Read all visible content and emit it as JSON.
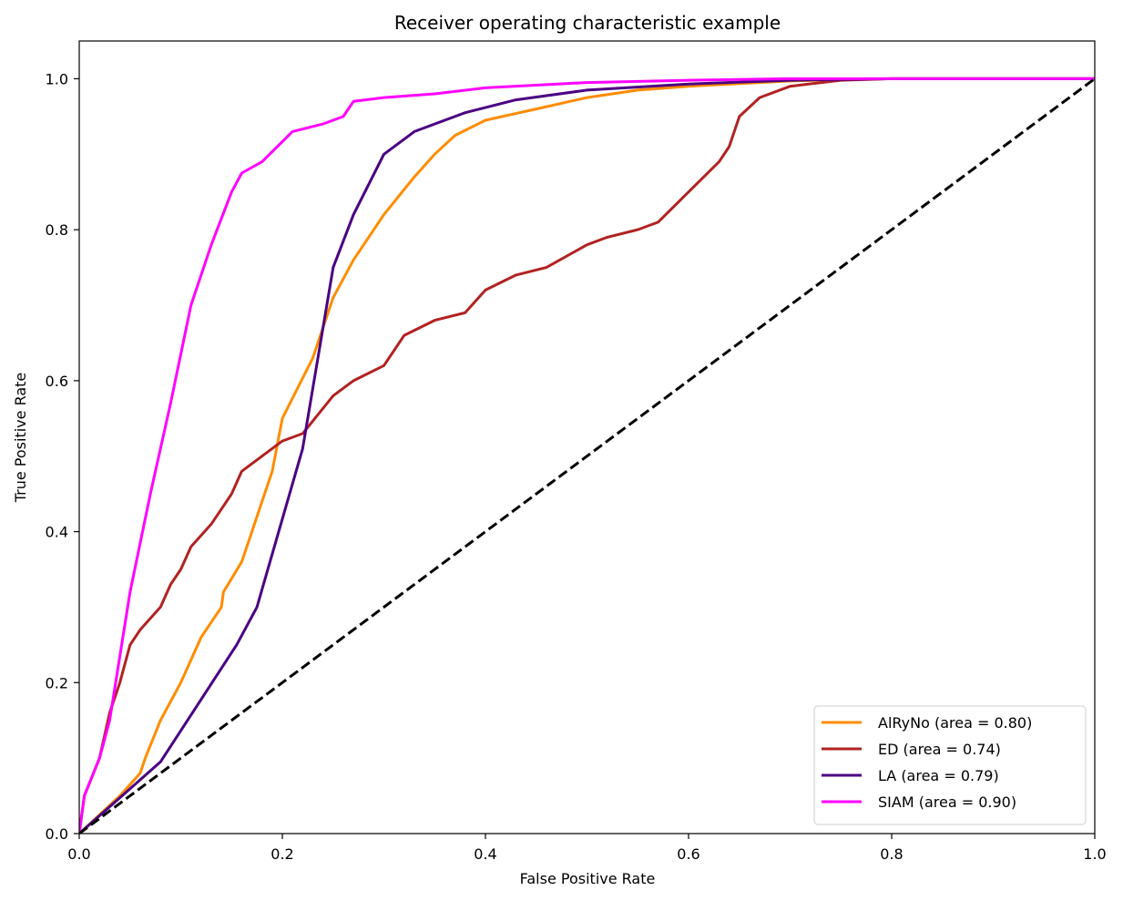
{
  "chart_data": {
    "type": "line",
    "title": "Receiver operating characteristic example",
    "xlabel": "False Positive Rate",
    "ylabel": "True Positive Rate",
    "xlim": [
      0.0,
      1.0
    ],
    "ylim": [
      0.0,
      1.05
    ],
    "xticks": [
      "0.0",
      "0.2",
      "0.4",
      "0.6",
      "0.8",
      "1.0"
    ],
    "yticks": [
      "0.0",
      "0.2",
      "0.4",
      "0.6",
      "0.8",
      "1.0"
    ],
    "grid": false,
    "legend_position": "lower right",
    "series": [
      {
        "name": "AlRyNo (area = 0.80)",
        "color": "#ff8c00",
        "points": [
          [
            0.0,
            0.0
          ],
          [
            0.02,
            0.025
          ],
          [
            0.04,
            0.05
          ],
          [
            0.06,
            0.08
          ],
          [
            0.065,
            0.1
          ],
          [
            0.08,
            0.15
          ],
          [
            0.1,
            0.2
          ],
          [
            0.12,
            0.26
          ],
          [
            0.14,
            0.3
          ],
          [
            0.142,
            0.32
          ],
          [
            0.16,
            0.36
          ],
          [
            0.17,
            0.4
          ],
          [
            0.18,
            0.44
          ],
          [
            0.19,
            0.48
          ],
          [
            0.2,
            0.55
          ],
          [
            0.23,
            0.63
          ],
          [
            0.25,
            0.71
          ],
          [
            0.27,
            0.76
          ],
          [
            0.3,
            0.82
          ],
          [
            0.33,
            0.87
          ],
          [
            0.35,
            0.9
          ],
          [
            0.37,
            0.925
          ],
          [
            0.4,
            0.945
          ],
          [
            0.45,
            0.96
          ],
          [
            0.5,
            0.975
          ],
          [
            0.55,
            0.985
          ],
          [
            0.6,
            0.99
          ],
          [
            0.7,
            0.997
          ],
          [
            0.8,
            1.0
          ],
          [
            1.0,
            1.0
          ]
        ]
      },
      {
        "name": "ED (area = 0.74)",
        "color": "#b22222",
        "points": [
          [
            0.0,
            0.0
          ],
          [
            0.005,
            0.05
          ],
          [
            0.02,
            0.1
          ],
          [
            0.03,
            0.16
          ],
          [
            0.04,
            0.2
          ],
          [
            0.05,
            0.25
          ],
          [
            0.06,
            0.27
          ],
          [
            0.08,
            0.3
          ],
          [
            0.09,
            0.33
          ],
          [
            0.1,
            0.35
          ],
          [
            0.11,
            0.38
          ],
          [
            0.13,
            0.41
          ],
          [
            0.15,
            0.45
          ],
          [
            0.16,
            0.48
          ],
          [
            0.18,
            0.5
          ],
          [
            0.2,
            0.52
          ],
          [
            0.22,
            0.53
          ],
          [
            0.25,
            0.58
          ],
          [
            0.27,
            0.6
          ],
          [
            0.3,
            0.62
          ],
          [
            0.32,
            0.66
          ],
          [
            0.35,
            0.68
          ],
          [
            0.38,
            0.69
          ],
          [
            0.4,
            0.72
          ],
          [
            0.43,
            0.74
          ],
          [
            0.46,
            0.75
          ],
          [
            0.5,
            0.78
          ],
          [
            0.52,
            0.79
          ],
          [
            0.55,
            0.8
          ],
          [
            0.57,
            0.81
          ],
          [
            0.6,
            0.85
          ],
          [
            0.63,
            0.89
          ],
          [
            0.64,
            0.91
          ],
          [
            0.65,
            0.95
          ],
          [
            0.67,
            0.975
          ],
          [
            0.7,
            0.99
          ],
          [
            0.75,
            0.998
          ],
          [
            0.8,
            1.0
          ],
          [
            1.0,
            1.0
          ]
        ]
      },
      {
        "name": "LA (area = 0.79)",
        "color": "#4b0082",
        "points": [
          [
            0.0,
            0.0
          ],
          [
            0.08,
            0.095
          ],
          [
            0.155,
            0.25
          ],
          [
            0.175,
            0.3
          ],
          [
            0.22,
            0.51
          ],
          [
            0.25,
            0.75
          ],
          [
            0.27,
            0.82
          ],
          [
            0.3,
            0.9
          ],
          [
            0.33,
            0.93
          ],
          [
            0.38,
            0.955
          ],
          [
            0.43,
            0.972
          ],
          [
            0.5,
            0.985
          ],
          [
            0.6,
            0.993
          ],
          [
            0.7,
            0.998
          ],
          [
            0.8,
            1.0
          ],
          [
            1.0,
            1.0
          ]
        ]
      },
      {
        "name": "SIAM (area = 0.90)",
        "color": "#ff00ff",
        "points": [
          [
            0.0,
            0.0
          ],
          [
            0.005,
            0.05
          ],
          [
            0.02,
            0.1
          ],
          [
            0.03,
            0.15
          ],
          [
            0.05,
            0.32
          ],
          [
            0.07,
            0.45
          ],
          [
            0.09,
            0.57
          ],
          [
            0.11,
            0.7
          ],
          [
            0.13,
            0.78
          ],
          [
            0.15,
            0.85
          ],
          [
            0.16,
            0.875
          ],
          [
            0.18,
            0.89
          ],
          [
            0.21,
            0.93
          ],
          [
            0.24,
            0.94
          ],
          [
            0.26,
            0.95
          ],
          [
            0.27,
            0.97
          ],
          [
            0.3,
            0.975
          ],
          [
            0.35,
            0.98
          ],
          [
            0.4,
            0.988
          ],
          [
            0.5,
            0.995
          ],
          [
            0.6,
            0.998
          ],
          [
            0.7,
            1.0
          ],
          [
            1.0,
            1.0
          ]
        ]
      },
      {
        "name": "",
        "color": "#000000",
        "dashed": true,
        "points": [
          [
            0.0,
            0.0
          ],
          [
            1.0,
            1.0
          ]
        ]
      }
    ]
  }
}
